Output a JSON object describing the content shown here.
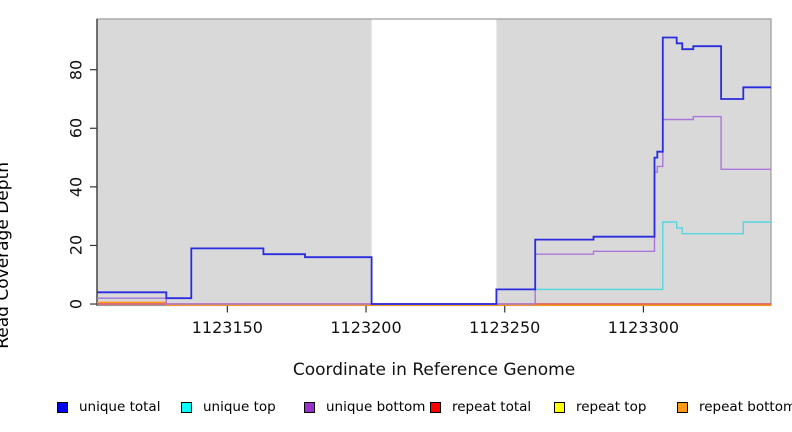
{
  "chart_data": {
    "type": "line",
    "subtype": "step-coverage",
    "title": "",
    "xlabel": "Coordinate in Reference Genome",
    "ylabel": "Read Coverage Depth",
    "xlim": [
      1123103,
      1123346
    ],
    "ylim": [
      -0.5,
      97.3
    ],
    "x_ticks": [
      "1123150",
      "1123200",
      "1123250",
      "1123300"
    ],
    "x_tick_values": [
      1123150,
      1123200,
      1123250,
      1123300
    ],
    "y_ticks": [
      "0",
      "20",
      "40",
      "60",
      "80"
    ],
    "y_tick_values": [
      0,
      20,
      40,
      60,
      80
    ],
    "grid": false,
    "legend_position": "bottom",
    "plot_background": "#ffffff",
    "shaded_color": "#d9d9d9",
    "shaded_regions": [
      [
        1123103,
        1123202
      ],
      [
        1123247,
        1123346
      ]
    ],
    "series": [
      {
        "name": "repeat top",
        "legend_color": "#ffff00",
        "line_color": "#e8e44c",
        "steps": [
          [
            1123103,
            0
          ],
          [
            1123346,
            0
          ]
        ]
      },
      {
        "name": "repeat total",
        "legend_color": "#ff0000",
        "line_color": "#d84a6e",
        "steps": [
          [
            1123103,
            0
          ],
          [
            1123346,
            0
          ]
        ]
      },
      {
        "name": "repeat bottom",
        "legend_color": "#ff9914",
        "line_color": "#ff9914",
        "steps": [
          [
            1123103,
            1
          ],
          [
            1123128,
            0
          ],
          [
            1123346,
            0
          ]
        ]
      },
      {
        "name": "unique top",
        "legend_color": "#00ffff",
        "line_color": "#52d7e0",
        "steps": [
          [
            1123103,
            2
          ],
          [
            1123137,
            19
          ],
          [
            1123163,
            17
          ],
          [
            1123178,
            16
          ],
          [
            1123202,
            0
          ],
          [
            1123247,
            5
          ],
          [
            1123307,
            28
          ],
          [
            1123312,
            26
          ],
          [
            1123314,
            24
          ],
          [
            1123336,
            28
          ],
          [
            1123346,
            28
          ]
        ]
      },
      {
        "name": "unique bottom",
        "legend_color": "#9932cc",
        "line_color": "#aa76da",
        "steps": [
          [
            1123103,
            2
          ],
          [
            1123128,
            0
          ],
          [
            1123261,
            17
          ],
          [
            1123282,
            18
          ],
          [
            1123304,
            45
          ],
          [
            1123305,
            47
          ],
          [
            1123307,
            63
          ],
          [
            1123318,
            64
          ],
          [
            1123328,
            46
          ],
          [
            1123346,
            46
          ]
        ]
      },
      {
        "name": "unique total",
        "legend_color": "#0000ee",
        "line_color": "#2b2be0",
        "steps": [
          [
            1123103,
            4
          ],
          [
            1123128,
            2
          ],
          [
            1123137,
            19
          ],
          [
            1123163,
            17
          ],
          [
            1123178,
            16
          ],
          [
            1123202,
            0
          ],
          [
            1123247,
            5
          ],
          [
            1123261,
            22
          ],
          [
            1123282,
            23
          ],
          [
            1123304,
            50
          ],
          [
            1123305,
            52
          ],
          [
            1123307,
            91
          ],
          [
            1123312,
            89
          ],
          [
            1123314,
            87
          ],
          [
            1123318,
            88
          ],
          [
            1123328,
            70
          ],
          [
            1123336,
            74
          ],
          [
            1123346,
            74
          ]
        ]
      }
    ],
    "legend_order": [
      "unique total",
      "unique top",
      "unique bottom",
      "repeat total",
      "repeat top",
      "repeat bottom"
    ]
  }
}
